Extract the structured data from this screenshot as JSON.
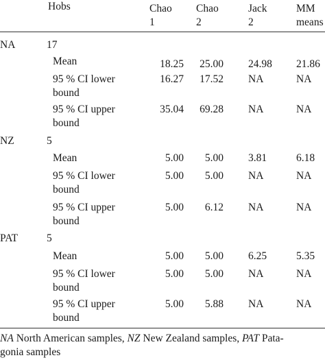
{
  "header": {
    "hobs": "Hobs",
    "chao1": [
      "Chao",
      "1"
    ],
    "chao2": [
      "Chao",
      "2"
    ],
    "jack2": [
      "Jack",
      "2"
    ],
    "mm": [
      "MM",
      "means"
    ]
  },
  "groups": [
    {
      "name": "NA",
      "hobs": "17",
      "mean": {
        "label": "Mean",
        "chao1": "18.25",
        "chao2": "25.00",
        "jack2": "24.98",
        "mm": "21.86"
      },
      "lower": {
        "label": [
          "95 % CI lower",
          "bound"
        ],
        "chao1": "16.27",
        "chao2": "17.52",
        "jack2": "NA",
        "mm": "NA"
      },
      "upper": {
        "label": [
          "95 % CI upper",
          "bound"
        ],
        "chao1": "35.04",
        "chao2": "69.28",
        "jack2": "NA",
        "mm": "NA"
      }
    },
    {
      "name": "NZ",
      "hobs": "5",
      "mean": {
        "label": "Mean",
        "chao1": "5.00",
        "chao2": "5.00",
        "jack2": "3.81",
        "mm": "6.18"
      },
      "lower": {
        "label": [
          "95 % CI lower",
          "bound"
        ],
        "chao1": "5.00",
        "chao2": "5.00",
        "jack2": "NA",
        "mm": "NA"
      },
      "upper": {
        "label": [
          "95 % CI upper",
          "bound"
        ],
        "chao1": "5.00",
        "chao2": "6.12",
        "jack2": "NA",
        "mm": "NA"
      }
    },
    {
      "name": "PAT",
      "hobs": "5",
      "mean": {
        "label": "Mean",
        "chao1": "5.00",
        "chao2": "5.00",
        "jack2": "6.25",
        "mm": "5.35"
      },
      "lower": {
        "label": [
          "95 % CI lower",
          "bound"
        ],
        "chao1": "5.00",
        "chao2": "5.00",
        "jack2": "NA",
        "mm": "NA"
      },
      "upper": {
        "label": [
          "95 % CI upper",
          "bound"
        ],
        "chao1": "5.00",
        "chao2": "5.88",
        "jack2": "NA",
        "mm": "NA"
      }
    }
  ],
  "footnote": {
    "na_abbr": "NA",
    "na_text": " North American samples, ",
    "nz_abbr": "NZ",
    "nz_text": " New Zealand samples, ",
    "pat_abbr": "PAT",
    "pat_text_1": " Pata-",
    "pat_text_2": "gonia samples"
  }
}
